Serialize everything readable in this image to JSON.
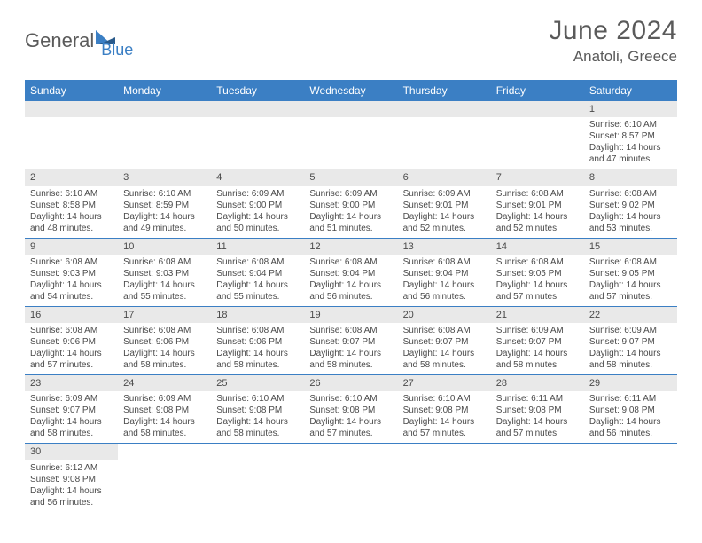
{
  "logo": {
    "part1": "General",
    "part2": "Blue"
  },
  "title": "June 2024",
  "location": "Anatoli, Greece",
  "colors": {
    "header_bg": "#3b7fc4",
    "header_text": "#ffffff",
    "daynum_bg": "#e9e9e9",
    "text": "#4a4a4a",
    "border": "#3b7fc4",
    "logo_gray": "#5a5a5a",
    "logo_blue": "#3b7fc4"
  },
  "day_headers": [
    "Sunday",
    "Monday",
    "Tuesday",
    "Wednesday",
    "Thursday",
    "Friday",
    "Saturday"
  ],
  "weeks": [
    [
      {
        "n": "",
        "lines": []
      },
      {
        "n": "",
        "lines": []
      },
      {
        "n": "",
        "lines": []
      },
      {
        "n": "",
        "lines": []
      },
      {
        "n": "",
        "lines": []
      },
      {
        "n": "",
        "lines": []
      },
      {
        "n": "1",
        "lines": [
          "Sunrise: 6:10 AM",
          "Sunset: 8:57 PM",
          "Daylight: 14 hours",
          "and 47 minutes."
        ]
      }
    ],
    [
      {
        "n": "2",
        "lines": [
          "Sunrise: 6:10 AM",
          "Sunset: 8:58 PM",
          "Daylight: 14 hours",
          "and 48 minutes."
        ]
      },
      {
        "n": "3",
        "lines": [
          "Sunrise: 6:10 AM",
          "Sunset: 8:59 PM",
          "Daylight: 14 hours",
          "and 49 minutes."
        ]
      },
      {
        "n": "4",
        "lines": [
          "Sunrise: 6:09 AM",
          "Sunset: 9:00 PM",
          "Daylight: 14 hours",
          "and 50 minutes."
        ]
      },
      {
        "n": "5",
        "lines": [
          "Sunrise: 6:09 AM",
          "Sunset: 9:00 PM",
          "Daylight: 14 hours",
          "and 51 minutes."
        ]
      },
      {
        "n": "6",
        "lines": [
          "Sunrise: 6:09 AM",
          "Sunset: 9:01 PM",
          "Daylight: 14 hours",
          "and 52 minutes."
        ]
      },
      {
        "n": "7",
        "lines": [
          "Sunrise: 6:08 AM",
          "Sunset: 9:01 PM",
          "Daylight: 14 hours",
          "and 52 minutes."
        ]
      },
      {
        "n": "8",
        "lines": [
          "Sunrise: 6:08 AM",
          "Sunset: 9:02 PM",
          "Daylight: 14 hours",
          "and 53 minutes."
        ]
      }
    ],
    [
      {
        "n": "9",
        "lines": [
          "Sunrise: 6:08 AM",
          "Sunset: 9:03 PM",
          "Daylight: 14 hours",
          "and 54 minutes."
        ]
      },
      {
        "n": "10",
        "lines": [
          "Sunrise: 6:08 AM",
          "Sunset: 9:03 PM",
          "Daylight: 14 hours",
          "and 55 minutes."
        ]
      },
      {
        "n": "11",
        "lines": [
          "Sunrise: 6:08 AM",
          "Sunset: 9:04 PM",
          "Daylight: 14 hours",
          "and 55 minutes."
        ]
      },
      {
        "n": "12",
        "lines": [
          "Sunrise: 6:08 AM",
          "Sunset: 9:04 PM",
          "Daylight: 14 hours",
          "and 56 minutes."
        ]
      },
      {
        "n": "13",
        "lines": [
          "Sunrise: 6:08 AM",
          "Sunset: 9:04 PM",
          "Daylight: 14 hours",
          "and 56 minutes."
        ]
      },
      {
        "n": "14",
        "lines": [
          "Sunrise: 6:08 AM",
          "Sunset: 9:05 PM",
          "Daylight: 14 hours",
          "and 57 minutes."
        ]
      },
      {
        "n": "15",
        "lines": [
          "Sunrise: 6:08 AM",
          "Sunset: 9:05 PM",
          "Daylight: 14 hours",
          "and 57 minutes."
        ]
      }
    ],
    [
      {
        "n": "16",
        "lines": [
          "Sunrise: 6:08 AM",
          "Sunset: 9:06 PM",
          "Daylight: 14 hours",
          "and 57 minutes."
        ]
      },
      {
        "n": "17",
        "lines": [
          "Sunrise: 6:08 AM",
          "Sunset: 9:06 PM",
          "Daylight: 14 hours",
          "and 58 minutes."
        ]
      },
      {
        "n": "18",
        "lines": [
          "Sunrise: 6:08 AM",
          "Sunset: 9:06 PM",
          "Daylight: 14 hours",
          "and 58 minutes."
        ]
      },
      {
        "n": "19",
        "lines": [
          "Sunrise: 6:08 AM",
          "Sunset: 9:07 PM",
          "Daylight: 14 hours",
          "and 58 minutes."
        ]
      },
      {
        "n": "20",
        "lines": [
          "Sunrise: 6:08 AM",
          "Sunset: 9:07 PM",
          "Daylight: 14 hours",
          "and 58 minutes."
        ]
      },
      {
        "n": "21",
        "lines": [
          "Sunrise: 6:09 AM",
          "Sunset: 9:07 PM",
          "Daylight: 14 hours",
          "and 58 minutes."
        ]
      },
      {
        "n": "22",
        "lines": [
          "Sunrise: 6:09 AM",
          "Sunset: 9:07 PM",
          "Daylight: 14 hours",
          "and 58 minutes."
        ]
      }
    ],
    [
      {
        "n": "23",
        "lines": [
          "Sunrise: 6:09 AM",
          "Sunset: 9:07 PM",
          "Daylight: 14 hours",
          "and 58 minutes."
        ]
      },
      {
        "n": "24",
        "lines": [
          "Sunrise: 6:09 AM",
          "Sunset: 9:08 PM",
          "Daylight: 14 hours",
          "and 58 minutes."
        ]
      },
      {
        "n": "25",
        "lines": [
          "Sunrise: 6:10 AM",
          "Sunset: 9:08 PM",
          "Daylight: 14 hours",
          "and 58 minutes."
        ]
      },
      {
        "n": "26",
        "lines": [
          "Sunrise: 6:10 AM",
          "Sunset: 9:08 PM",
          "Daylight: 14 hours",
          "and 57 minutes."
        ]
      },
      {
        "n": "27",
        "lines": [
          "Sunrise: 6:10 AM",
          "Sunset: 9:08 PM",
          "Daylight: 14 hours",
          "and 57 minutes."
        ]
      },
      {
        "n": "28",
        "lines": [
          "Sunrise: 6:11 AM",
          "Sunset: 9:08 PM",
          "Daylight: 14 hours",
          "and 57 minutes."
        ]
      },
      {
        "n": "29",
        "lines": [
          "Sunrise: 6:11 AM",
          "Sunset: 9:08 PM",
          "Daylight: 14 hours",
          "and 56 minutes."
        ]
      }
    ],
    [
      {
        "n": "30",
        "lines": [
          "Sunrise: 6:12 AM",
          "Sunset: 9:08 PM",
          "Daylight: 14 hours",
          "and 56 minutes."
        ]
      },
      {
        "n": "",
        "lines": []
      },
      {
        "n": "",
        "lines": []
      },
      {
        "n": "",
        "lines": []
      },
      {
        "n": "",
        "lines": []
      },
      {
        "n": "",
        "lines": []
      },
      {
        "n": "",
        "lines": []
      }
    ]
  ]
}
